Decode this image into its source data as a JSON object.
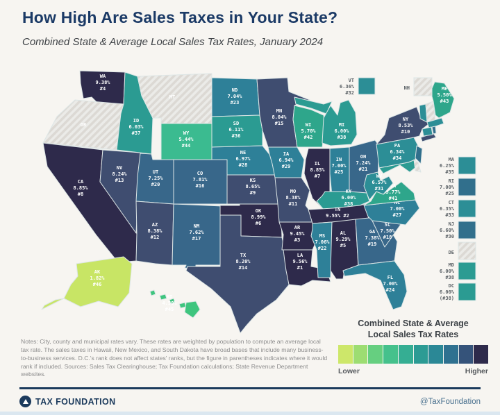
{
  "title": "How High Are Sales Taxes in Your State?",
  "subtitle": "Combined State & Average Local Sales Tax Rates, January 2024",
  "map": {
    "states": [
      {
        "abbr": "WA",
        "rate": "9.38%",
        "rank": "#4",
        "color": "#2e2a4b",
        "label_lines": [
          "WA",
          "9.38%",
          "#4"
        ]
      },
      {
        "abbr": "OR",
        "no_tax": true,
        "text_color": "#5f6368",
        "label_lines": [
          "OR"
        ]
      },
      {
        "abbr": "CA",
        "rate": "8.85%",
        "rank": "#8",
        "color": "#2e2a4b",
        "label_lines": [
          "CA",
          "8.85%",
          "#8"
        ]
      },
      {
        "abbr": "NV",
        "rate": "8.24%",
        "rank": "#13",
        "color": "#3f4d70",
        "label_lines": [
          "NV",
          "8.24%",
          "#13"
        ]
      },
      {
        "abbr": "ID",
        "rate": "6.03%",
        "rank": "#37",
        "color": "#2b9b92",
        "label_lines": [
          "ID",
          "6.03%",
          "#37"
        ]
      },
      {
        "abbr": "MT",
        "no_tax": true,
        "text_color": "#5f6368",
        "label_lines": [
          "MT"
        ]
      },
      {
        "abbr": "WY",
        "rate": "5.44%",
        "rank": "#44",
        "color": "#3bbb90",
        "label_lines": [
          "WY",
          "5.44%",
          "#44"
        ]
      },
      {
        "abbr": "UT",
        "rate": "7.25%",
        "rank": "#20",
        "color": "#38678a",
        "label_lines": [
          "UT",
          "7.25%",
          "#20"
        ]
      },
      {
        "abbr": "CO",
        "rate": "7.81%",
        "rank": "#16",
        "color": "#38678a",
        "label_lines": [
          "CO",
          "7.81%",
          "#16"
        ]
      },
      {
        "abbr": "AZ",
        "rate": "8.38%",
        "rank": "#12",
        "color": "#3f4d70",
        "label_lines": [
          "AZ",
          "8.38%",
          "#12"
        ]
      },
      {
        "abbr": "NM",
        "rate": "7.62%",
        "rank": "#17",
        "color": "#38678a",
        "label_lines": [
          "NM",
          "7.62%",
          "#17"
        ]
      },
      {
        "abbr": "ND",
        "rate": "7.04%",
        "rank": "#23",
        "color": "#2e8098",
        "label_lines": [
          "ND",
          "7.04%",
          "#23"
        ]
      },
      {
        "abbr": "SD",
        "rate": "6.11%",
        "rank": "#36",
        "color": "#2b9b92",
        "label_lines": [
          "SD",
          "6.11%",
          "#36"
        ]
      },
      {
        "abbr": "NE",
        "rate": "6.97%",
        "rank": "#28",
        "color": "#2e8098",
        "label_lines": [
          "NE",
          "6.97%",
          "#28"
        ]
      },
      {
        "abbr": "KS",
        "rate": "8.65%",
        "rank": "#9",
        "color": "#3f4d70",
        "label_lines": [
          "KS",
          "8.65%",
          "#9"
        ]
      },
      {
        "abbr": "OK",
        "rate": "8.99%",
        "rank": "#6",
        "color": "#2e2a4b",
        "label_lines": [
          "OK",
          "8.99%",
          "#6"
        ]
      },
      {
        "abbr": "TX",
        "rate": "8.20%",
        "rank": "#14",
        "color": "#3f4d70",
        "label_lines": [
          "TX",
          "8.20%",
          "#14"
        ]
      },
      {
        "abbr": "MN",
        "rate": "8.04%",
        "rank": "#15",
        "color": "#3f4d70",
        "label_lines": [
          "MN",
          "8.04%",
          "#15"
        ]
      },
      {
        "abbr": "IA",
        "rate": "6.94%",
        "rank": "#29",
        "color": "#2e8098",
        "label_lines": [
          "IA",
          "6.94%",
          "#29"
        ]
      },
      {
        "abbr": "MO",
        "rate": "8.38%",
        "rank": "#11",
        "color": "#3f4d70",
        "label_lines": [
          "MO",
          "8.38%",
          "#11"
        ]
      },
      {
        "abbr": "AR",
        "rate": "9.45%",
        "rank": "#3",
        "color": "#2e2a4b",
        "label_lines": [
          "AR",
          "9.45%",
          "#3"
        ]
      },
      {
        "abbr": "LA",
        "rate": "9.56%",
        "rank": "#1",
        "color": "#2e2a4b",
        "label_lines": [
          "LA",
          "9.56%",
          "#1"
        ]
      },
      {
        "abbr": "WI",
        "rate": "5.70%",
        "rank": "#42",
        "color": "#2ea68b",
        "label_lines": [
          "WI",
          "5.70%",
          "#42"
        ]
      },
      {
        "abbr": "MI",
        "rate": "6.00%",
        "rank": "#38",
        "color": "#2b9b92",
        "label_lines": [
          "MI",
          "6.00%",
          "#38"
        ]
      },
      {
        "abbr": "IL",
        "rate": "8.85%",
        "rank": "#7",
        "color": "#2e2a4b",
        "label_lines": [
          "IL",
          "8.85%",
          "#7"
        ]
      },
      {
        "abbr": "IN",
        "rate": "7.00%",
        "rank": "#25",
        "color": "#2e8098",
        "label_lines": [
          "IN",
          "7.00%",
          "#25"
        ]
      },
      {
        "abbr": "OH",
        "rate": "7.24%",
        "rank": "#21",
        "color": "#38678a",
        "label_lines": [
          "OH",
          "7.24%",
          "#21"
        ]
      },
      {
        "abbr": "KY",
        "rate": "6.00%",
        "rank": "#38",
        "color": "#2b9b92",
        "label_lines": [
          "KY",
          "6.00%",
          "#38"
        ]
      },
      {
        "abbr": "TN",
        "rate": "9.55%",
        "rank": "#2",
        "color": "#2e2a4b",
        "label_lines": [
          "TN",
          "9.55% #2"
        ]
      },
      {
        "abbr": "MS",
        "rate": "7.06%",
        "rank": "#22",
        "color": "#2e8098",
        "label_lines": [
          "MS",
          "7.06%",
          "#22"
        ]
      },
      {
        "abbr": "AL",
        "rate": "9.29%",
        "rank": "#5",
        "color": "#2e2a4b",
        "label_lines": [
          "AL",
          "9.29%",
          "#5"
        ]
      },
      {
        "abbr": "GA",
        "rate": "7.38%",
        "rank": "#19",
        "color": "#38678a",
        "label_lines": [
          "GA",
          "7.38%",
          "#19"
        ]
      },
      {
        "abbr": "FL",
        "rate": "7.00%",
        "rank": "#24",
        "color": "#2e8098",
        "label_lines": [
          "FL",
          "7.00%",
          "#24"
        ]
      },
      {
        "abbr": "SC",
        "rate": "7.50%",
        "rank": "#18",
        "color": "#38678a",
        "label_lines": [
          "SC",
          "7.50%",
          "#18"
        ]
      },
      {
        "abbr": "NC",
        "rate": "7.00%",
        "rank": "#27",
        "color": "#2e8098",
        "label_lines": [
          "NC",
          "7.00%",
          "#27"
        ]
      },
      {
        "abbr": "VA",
        "rate": "5.77%",
        "rank": "#41",
        "color": "#2ea68b",
        "label_lines": [
          "VA",
          "5.77%",
          "#41"
        ]
      },
      {
        "abbr": "WV",
        "rate": "6.57%",
        "rank": "#31",
        "color": "#2c8e96",
        "label_lines": [
          "WV",
          "6.57%",
          "#31"
        ]
      },
      {
        "abbr": "PA",
        "rate": "6.34%",
        "rank": "#34",
        "color": "#2c8e96",
        "label_lines": [
          "PA",
          "6.34%",
          "#34"
        ]
      },
      {
        "abbr": "MD",
        "rate": "6.00%",
        "rank": "#38",
        "color": "#2b9b92",
        "label_lines": []
      },
      {
        "abbr": "DE",
        "no_tax": true,
        "label_lines": []
      },
      {
        "abbr": "NJ",
        "rate": "6.60%",
        "rank": "#30",
        "color": "#316f8c",
        "label_lines": []
      },
      {
        "abbr": "NY",
        "rate": "8.53%",
        "rank": "#10",
        "color": "#3f4d70",
        "label_lines": [
          "NY",
          "8.53%",
          "#10"
        ]
      },
      {
        "abbr": "VT",
        "rate": "6.36%",
        "rank": "#32",
        "color": "#2c8e96",
        "label_lines": []
      },
      {
        "abbr": "NH",
        "no_tax": true,
        "label_lines": []
      },
      {
        "abbr": "ME",
        "rate": "5.50%",
        "rank": "#43",
        "color": "#2ea68b",
        "label_lines": [
          "ME",
          "5.50%",
          "#43"
        ]
      },
      {
        "abbr": "MA",
        "rate": "6.25%",
        "rank": "#35",
        "color": "#2c8e96",
        "label_lines": []
      },
      {
        "abbr": "CT",
        "rate": "6.35%",
        "rank": "#33",
        "color": "#2c8e96",
        "label_lines": []
      },
      {
        "abbr": "RI",
        "rate": "7.00%",
        "rank": "#25",
        "color": "#316f8c",
        "label_lines": []
      },
      {
        "abbr": "AK",
        "rate": "1.82%",
        "rank": "#46",
        "color": "#c8e565",
        "text_color": "#49573f",
        "label_lines": [
          "AK",
          "1.82%",
          "#46"
        ]
      },
      {
        "abbr": "HI",
        "rate": "4.50%",
        "rank": "#45",
        "color": "#3ec57e",
        "text_color": "#4a5a58",
        "label_lines": [
          "HI",
          "4.50%",
          "#45"
        ]
      }
    ]
  },
  "callouts": {
    "top": [
      {
        "abbr": "VT",
        "rate": "6.36%",
        "rank": "#32",
        "color": "#2c8e96"
      },
      {
        "abbr": "NH",
        "no_tax": true
      }
    ],
    "right": [
      {
        "abbr": "MA",
        "rate": "6.25%",
        "rank": "#35",
        "color": "#2c8e96"
      },
      {
        "abbr": "RI",
        "rate": "7.00%",
        "rank": "#25",
        "color": "#316f8c"
      },
      {
        "abbr": "CT",
        "rate": "6.35%",
        "rank": "#33",
        "color": "#2c8e96"
      },
      {
        "abbr": "NJ",
        "rate": "6.60%",
        "rank": "#30",
        "color": "#316f8c"
      },
      {
        "abbr": "DE",
        "no_tax": true
      },
      {
        "abbr": "MD",
        "rate": "6.00%",
        "rank": "#38",
        "color": "#2b9b92"
      },
      {
        "abbr": "DC",
        "rate": "6.00%",
        "rank": "(#38)",
        "color": "#2b9b92"
      }
    ]
  },
  "legend": {
    "title_line1": "Combined State & Average",
    "title_line2": "Local Sales Tax Rates",
    "lower": "Lower",
    "higher": "Higher",
    "colors": [
      "#cde76a",
      "#9ddd72",
      "#66cf80",
      "#45c18c",
      "#35ae93",
      "#2c9b94",
      "#2b8896",
      "#2f7190",
      "#35537a",
      "#2e2a4b"
    ]
  },
  "notes": "Notes: City, county and municipal rates vary. These rates are weighted by population to compute an average local tax rate. The sales taxes in Hawaii, New Mexico, and South Dakota have broad bases that include many business-to-business services. D.C.'s rank does not affect states' ranks, but the figure in parentheses indicates where it would rank if included. Sources: Sales Tax Clearinghouse; Tax Foundation calculations; State Revenue Department websites.",
  "footer": {
    "brand": "TAX FOUNDATION",
    "handle": "@TaxFoundation"
  }
}
